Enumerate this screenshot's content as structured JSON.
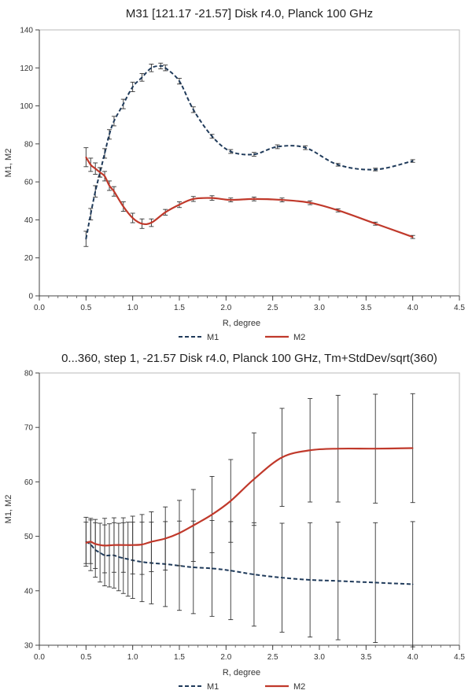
{
  "chart_data": [
    {
      "type": "line",
      "title": "M31  [121.17  -21.57]  Disk r4.0, Planck 100 GHz",
      "xlabel": "R, degree",
      "ylabel": "M1, M2",
      "xlim": [
        0,
        4.5
      ],
      "ylim": [
        0,
        140
      ],
      "xticks": [
        0,
        0.5,
        1,
        1.5,
        2,
        2.5,
        3,
        3.5,
        4,
        4.5
      ],
      "xtick_labels": [
        "0.0",
        "0.5",
        "1.0",
        "1.5",
        "2.0",
        "2.5",
        "3.0",
        "3.5",
        "4.0",
        "4.5"
      ],
      "yticks": [
        0,
        20,
        40,
        60,
        80,
        100,
        120,
        140
      ],
      "ytick_labels": [
        "0",
        "20",
        "40",
        "60",
        "80",
        "100",
        "120",
        "140"
      ],
      "grid": false,
      "legend_position": "bottom-center",
      "series": [
        {
          "name": "M1",
          "color": "#1f3a5a",
          "style": "dashed",
          "x": [
            0.5,
            0.55,
            0.6,
            0.65,
            0.7,
            0.75,
            0.8,
            0.9,
            1.0,
            1.1,
            1.2,
            1.3,
            1.35,
            1.5,
            1.65,
            1.85,
            2.05,
            2.3,
            2.55,
            2.85,
            3.2,
            3.6,
            4.0
          ],
          "y": [
            30,
            43,
            55,
            65,
            75,
            85,
            92,
            101,
            110,
            115,
            120,
            121,
            120,
            113,
            98,
            84,
            76,
            74.5,
            78.5,
            78,
            69,
            66.5,
            71
          ],
          "err": [
            4,
            3,
            3,
            2.5,
            2.5,
            2.5,
            2.5,
            2.5,
            2.5,
            2,
            2,
            1.5,
            1.5,
            1.5,
            1.5,
            1,
            1,
            1,
            1,
            1,
            0.7,
            0.7,
            0.7
          ]
        },
        {
          "name": "M2",
          "color": "#c0392b",
          "style": "solid",
          "x": [
            0.5,
            0.55,
            0.6,
            0.65,
            0.7,
            0.75,
            0.8,
            0.9,
            1.0,
            1.1,
            1.2,
            1.35,
            1.5,
            1.65,
            1.85,
            2.05,
            2.3,
            2.6,
            2.9,
            3.2,
            3.6,
            4.0
          ],
          "y": [
            73,
            69,
            67,
            65,
            63,
            58,
            55,
            47,
            41,
            38,
            38.5,
            44,
            48,
            51,
            51.5,
            50.5,
            51,
            50.5,
            49,
            45,
            38,
            31
          ],
          "err": [
            5,
            3.5,
            3,
            2.5,
            2.5,
            2.5,
            2.5,
            2.5,
            2.5,
            2.5,
            2,
            1.5,
            1.5,
            1.3,
            1.2,
            1,
            1,
            1,
            1,
            0.8,
            0.8,
            0.8
          ]
        }
      ]
    },
    {
      "type": "line",
      "title": "0...360, step 1, -21.57  Disk r4.0, Planck 100 GHz, Tm+StdDev/sqrt(360)",
      "xlabel": "R, degree",
      "ylabel": "M1, M2",
      "xlim": [
        0,
        4.5
      ],
      "ylim": [
        30,
        80
      ],
      "xticks": [
        0,
        0.5,
        1,
        1.5,
        2,
        2.5,
        3,
        3.5,
        4,
        4.5
      ],
      "xtick_labels": [
        "0.0",
        "0.5",
        "1.0",
        "1.5",
        "2.0",
        "2.5",
        "3.0",
        "3.5",
        "4.0",
        "4.5"
      ],
      "yticks": [
        30,
        40,
        50,
        60,
        70,
        80
      ],
      "ytick_labels": [
        "30",
        "40",
        "50",
        "60",
        "70",
        "80"
      ],
      "grid": false,
      "legend_position": "bottom-center",
      "series": [
        {
          "name": "M1",
          "color": "#1f3a5a",
          "style": "dashed",
          "x": [
            0.5,
            0.55,
            0.6,
            0.65,
            0.7,
            0.75,
            0.8,
            0.85,
            0.9,
            0.95,
            1.0,
            1.1,
            1.2,
            1.35,
            1.5,
            1.65,
            1.85,
            2.05,
            2.3,
            2.6,
            2.9,
            3.2,
            3.6,
            4.0
          ],
          "y": [
            49,
            48.5,
            47.5,
            47,
            46.5,
            46.5,
            46.5,
            46.2,
            46,
            45.8,
            45.6,
            45.3,
            45.1,
            44.9,
            44.6,
            44.3,
            44.1,
            43.7,
            43,
            42.4,
            42,
            41.8,
            41.5,
            41.2
          ],
          "err": [
            4.5,
            4.8,
            5,
            5.4,
            5.6,
            5.8,
            6,
            6.2,
            6.5,
            6.8,
            7,
            7.3,
            7.5,
            7.8,
            8.2,
            8.5,
            8.8,
            9,
            9.5,
            10,
            10.5,
            10.8,
            11,
            11.5
          ]
        },
        {
          "name": "M2",
          "color": "#c0392b",
          "style": "solid",
          "x": [
            0.5,
            0.55,
            0.6,
            0.7,
            0.8,
            0.9,
            1.0,
            1.1,
            1.2,
            1.35,
            1.5,
            1.65,
            1.85,
            2.05,
            2.3,
            2.6,
            2.9,
            3.2,
            3.6,
            4.0
          ],
          "y": [
            48.8,
            49,
            48.6,
            48.3,
            48.4,
            48.4,
            48.4,
            48.5,
            49,
            49.6,
            50.6,
            52,
            54,
            56.5,
            60.5,
            64.5,
            65.8,
            66.1,
            66.1,
            66.2
          ],
          "err": [
            3.8,
            4,
            4.5,
            5,
            5,
            5,
            5.3,
            5.5,
            5.5,
            5.8,
            6,
            6.6,
            7,
            7.6,
            8.5,
            9,
            9.5,
            9.8,
            10,
            10
          ]
        }
      ]
    }
  ]
}
